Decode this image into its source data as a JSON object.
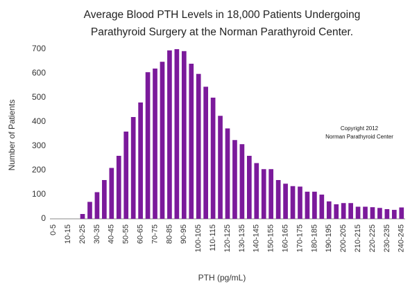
{
  "chart_data": {
    "type": "bar",
    "title": [
      "Average Blood PTH Levels in 18,000 Patients Undergoing",
      "Parathyroid Surgery at the Norman Parathyroid Center."
    ],
    "x_label": "PTH (pg/mL)",
    "y_label": "Number of Patients",
    "annotations": [
      "Copyright 2012",
      "Norman Parathyroid Center"
    ],
    "categories": [
      "0-5",
      null,
      "10-15",
      null,
      "20-25",
      null,
      "30-35",
      null,
      "40-45",
      null,
      "50-55",
      null,
      "60-65",
      null,
      "70-75",
      null,
      "80-85",
      null,
      "90-95",
      null,
      "100-105",
      null,
      "110-115",
      null,
      "120-125",
      null,
      "130-135",
      null,
      "140-145",
      null,
      "150-155",
      null,
      "160-165",
      null,
      "170-175",
      null,
      "180-185",
      null,
      "190-195",
      null,
      "200-205",
      null,
      "210-215",
      null,
      "220-225",
      null,
      "230-235",
      null,
      "240-245"
    ],
    "values": [
      0,
      0,
      0,
      0,
      20,
      70,
      110,
      160,
      210,
      260,
      360,
      420,
      480,
      605,
      620,
      648,
      695,
      700,
      692,
      640,
      598,
      545,
      500,
      425,
      373,
      325,
      308,
      260,
      230,
      205,
      205,
      160,
      145,
      135,
      133,
      112,
      112,
      100,
      72,
      60,
      65,
      65,
      50,
      50,
      48,
      45,
      40,
      37,
      47
    ],
    "color": "#7b1a9b",
    "ylim": [
      0,
      700
    ],
    "yticks": [
      0,
      100,
      200,
      300,
      400,
      500,
      600,
      700
    ],
    "grid": false
  }
}
